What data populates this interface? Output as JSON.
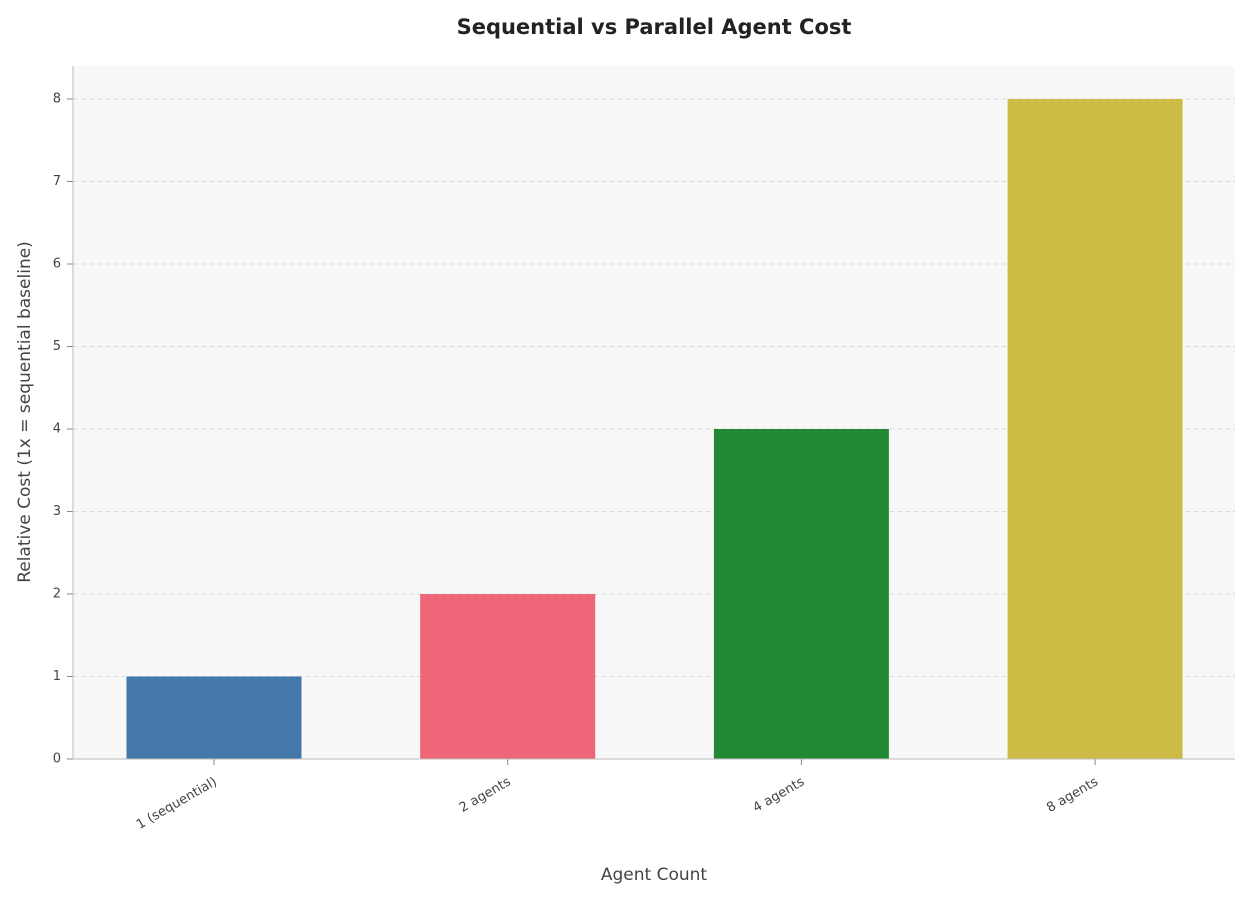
{
  "chart_data": {
    "type": "bar",
    "title": "Sequential vs Parallel Agent Cost",
    "x_label": "Agent Count",
    "y_label": "Relative Cost (1x = sequential baseline)",
    "categories": [
      "1 (sequential)",
      "2 agents",
      "4 agents",
      "8 agents"
    ],
    "values": [
      1,
      2,
      4,
      8
    ],
    "colors": [
      "#4477aa",
      "#ee6677",
      "#228833",
      "#ccbb44"
    ],
    "ylim": [
      0,
      8.4
    ],
    "yticks": [
      0,
      1,
      2,
      3,
      4,
      5,
      6,
      7,
      8
    ],
    "grid": true
  }
}
